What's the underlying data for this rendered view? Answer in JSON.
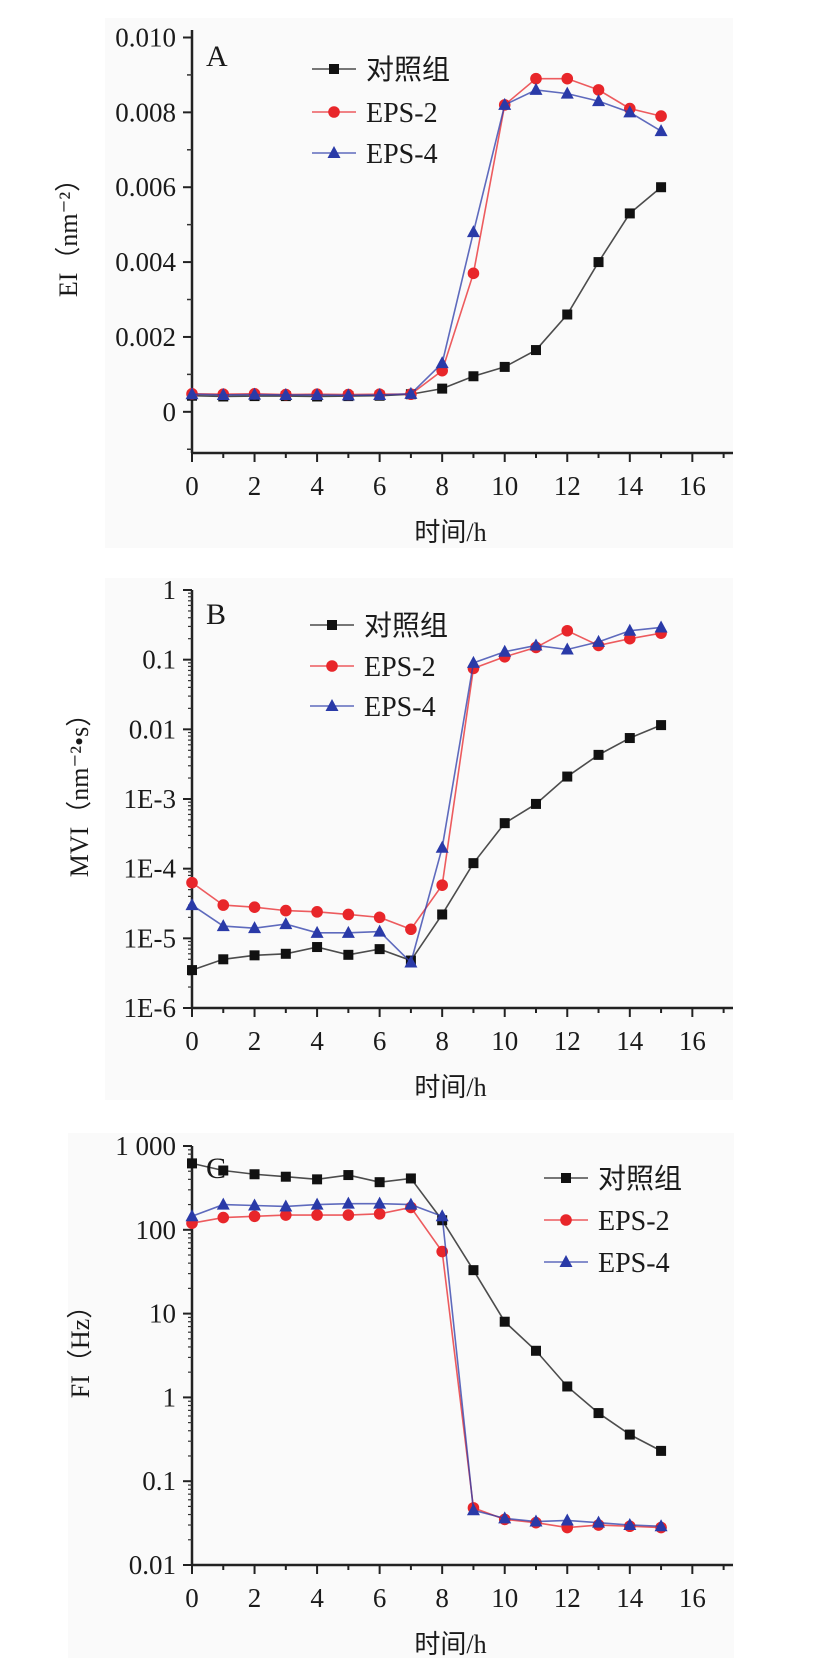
{
  "chart_data": [
    {
      "type": "line",
      "panel_label": "A",
      "xlabel": "时间/h",
      "ylabel": "EI（nm⁻²）",
      "xlim": [
        0,
        17.3
      ],
      "ylim": [
        -0.0011,
        0.0102
      ],
      "yscale": "linear",
      "grid": false,
      "legend_placement": "top-center",
      "x_ticks": [
        0,
        2,
        4,
        6,
        8,
        10,
        12,
        14,
        16
      ],
      "x_tick_labels": [
        "0",
        "2",
        "4",
        "6",
        "8",
        "10",
        "12",
        "14",
        "16"
      ],
      "y_ticks": [
        0.01,
        0.008,
        0.006,
        0.004,
        0.002,
        0
      ],
      "y_tick_labels": [
        "0.010",
        "0.008",
        "0.006",
        "0.004",
        "0.002",
        "0"
      ],
      "x": [
        0,
        1,
        2,
        3,
        4,
        5,
        6,
        7,
        8,
        9,
        10,
        11,
        12,
        13,
        14,
        15
      ],
      "series": [
        {
          "name": "对照组",
          "color": "#111111",
          "marker": "square",
          "values": [
            0.00043,
            0.00041,
            0.00042,
            0.00042,
            0.00041,
            0.00042,
            0.00043,
            0.00047,
            0.00062,
            0.00095,
            0.0012,
            0.00165,
            0.0026,
            0.004,
            0.0053,
            0.006
          ]
        },
        {
          "name": "EPS-2",
          "color": "#e8262a",
          "marker": "circle",
          "values": [
            0.00048,
            0.00047,
            0.00048,
            0.00046,
            0.00047,
            0.00046,
            0.00047,
            0.00047,
            0.0011,
            0.0037,
            0.0082,
            0.0089,
            0.0089,
            0.0086,
            0.0081,
            0.0079
          ]
        },
        {
          "name": "EPS-4",
          "color": "#2a3aa8",
          "marker": "triangle",
          "values": [
            0.00047,
            0.00045,
            0.00046,
            0.00045,
            0.00045,
            0.00044,
            0.00045,
            0.00048,
            0.0013,
            0.0048,
            0.0082,
            0.0086,
            0.0085,
            0.0083,
            0.008,
            0.0075
          ]
        }
      ]
    },
    {
      "type": "line",
      "panel_label": "B",
      "xlabel": "时间/h",
      "ylabel": "MVI（nm⁻²•s）",
      "xlim": [
        0,
        17.3
      ],
      "ylim": [
        1e-06,
        1
      ],
      "yscale": "log",
      "grid": false,
      "legend_placement": "top-center",
      "x_ticks": [
        0,
        2,
        4,
        6,
        8,
        10,
        12,
        14,
        16
      ],
      "x_tick_labels": [
        "0",
        "2",
        "4",
        "6",
        "8",
        "10",
        "12",
        "14",
        "16"
      ],
      "y_ticks": [
        1,
        0.1,
        0.01,
        0.001,
        0.0001,
        1e-05,
        1e-06
      ],
      "y_tick_labels": [
        "1",
        "0.1",
        "0.01",
        "1E-3",
        "1E-4",
        "1E-5",
        "1E-6"
      ],
      "x": [
        0,
        1,
        2,
        3,
        4,
        5,
        6,
        7,
        8,
        9,
        10,
        11,
        12,
        13,
        14,
        15
      ],
      "series": [
        {
          "name": "对照组",
          "color": "#111111",
          "marker": "square",
          "values": [
            3.5e-06,
            5e-06,
            5.7e-06,
            6e-06,
            7.5e-06,
            5.8e-06,
            7e-06,
            4.8e-06,
            2.2e-05,
            0.00012,
            0.00045,
            0.00085,
            0.0021,
            0.0043,
            0.0075,
            0.0115
          ]
        },
        {
          "name": "EPS-2",
          "color": "#e8262a",
          "marker": "circle",
          "values": [
            6.3e-05,
            3e-05,
            2.8e-05,
            2.5e-05,
            2.4e-05,
            2.2e-05,
            2e-05,
            1.35e-05,
            5.8e-05,
            0.075,
            0.11,
            0.15,
            0.26,
            0.16,
            0.2,
            0.24
          ]
        },
        {
          "name": "EPS-4",
          "color": "#2a3aa8",
          "marker": "triangle",
          "values": [
            3e-05,
            1.5e-05,
            1.4e-05,
            1.6e-05,
            1.2e-05,
            1.2e-05,
            1.25e-05,
            4.5e-06,
            0.0002,
            0.09,
            0.13,
            0.16,
            0.14,
            0.18,
            0.26,
            0.29
          ]
        }
      ]
    },
    {
      "type": "line",
      "panel_label": "C",
      "xlabel": "时间/h",
      "ylabel": "FI（Hz）",
      "xlim": [
        0,
        17.3
      ],
      "ylim": [
        0.01,
        1000
      ],
      "yscale": "log",
      "grid": false,
      "legend_placement": "top-right",
      "x_ticks": [
        0,
        2,
        4,
        6,
        8,
        10,
        12,
        14,
        16
      ],
      "x_tick_labels": [
        "0",
        "2",
        "4",
        "6",
        "8",
        "10",
        "12",
        "14",
        "16"
      ],
      "y_ticks": [
        1000,
        100,
        10,
        1,
        0.1,
        0.01
      ],
      "y_tick_labels": [
        "1 000",
        "100",
        "10",
        "1",
        "0.1",
        "0.01"
      ],
      "x": [
        0,
        1,
        2,
        3,
        4,
        5,
        6,
        7,
        8,
        9,
        10,
        11,
        12,
        13,
        14,
        15
      ],
      "series": [
        {
          "name": "对照组",
          "color": "#111111",
          "marker": "square",
          "values": [
            620,
            510,
            460,
            430,
            400,
            450,
            370,
            410,
            130,
            33,
            8,
            3.6,
            1.35,
            0.65,
            0.36,
            0.23
          ]
        },
        {
          "name": "EPS-2",
          "color": "#e8262a",
          "marker": "circle",
          "values": [
            120,
            140,
            145,
            150,
            150,
            150,
            155,
            185,
            55,
            0.048,
            0.035,
            0.032,
            0.028,
            0.03,
            0.029,
            0.028
          ]
        },
        {
          "name": "EPS-4",
          "color": "#2a3aa8",
          "marker": "triangle",
          "values": [
            145,
            200,
            195,
            190,
            200,
            205,
            205,
            200,
            145,
            0.045,
            0.036,
            0.033,
            0.034,
            0.032,
            0.03,
            0.029
          ]
        }
      ]
    }
  ]
}
